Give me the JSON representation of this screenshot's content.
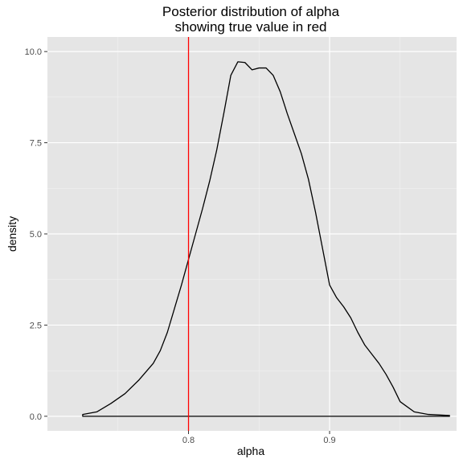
{
  "chart_data": {
    "type": "area",
    "title_line1": "Posterior distribution of alpha",
    "title_line2": "showing true value in red",
    "xlabel": "alpha",
    "ylabel": "density",
    "xlim": [
      0.7,
      0.99
    ],
    "ylim": [
      -0.4,
      10.4
    ],
    "x_ticks": [
      0.8,
      0.9
    ],
    "x_tick_labels": [
      "0.8",
      "0.9"
    ],
    "y_ticks": [
      0.0,
      2.5,
      5.0,
      7.5,
      10.0
    ],
    "y_tick_labels": [
      "0.0",
      "2.5",
      "5.0",
      "7.5",
      "10.0"
    ],
    "grid": true,
    "reference_line": {
      "x": 0.8,
      "color": "#ff0000"
    },
    "series": [
      {
        "color": "#000000",
        "x": [
          0.725,
          0.735,
          0.745,
          0.755,
          0.765,
          0.775,
          0.78,
          0.785,
          0.79,
          0.795,
          0.8,
          0.805,
          0.81,
          0.815,
          0.82,
          0.825,
          0.83,
          0.835,
          0.84,
          0.845,
          0.85,
          0.855,
          0.86,
          0.865,
          0.87,
          0.875,
          0.88,
          0.885,
          0.89,
          0.895,
          0.9,
          0.905,
          0.91,
          0.915,
          0.92,
          0.925,
          0.93,
          0.935,
          0.94,
          0.945,
          0.95,
          0.96,
          0.97,
          0.985
        ],
        "y": [
          0.05,
          0.12,
          0.35,
          0.62,
          1.0,
          1.45,
          1.8,
          2.3,
          2.95,
          3.6,
          4.3,
          5.0,
          5.7,
          6.45,
          7.3,
          8.3,
          9.35,
          9.72,
          9.7,
          9.5,
          9.55,
          9.55,
          9.35,
          8.9,
          8.3,
          7.75,
          7.2,
          6.5,
          5.6,
          4.6,
          3.6,
          3.25,
          3.0,
          2.7,
          2.3,
          1.95,
          1.7,
          1.45,
          1.15,
          0.8,
          0.4,
          0.12,
          0.05,
          0.02
        ]
      }
    ]
  }
}
